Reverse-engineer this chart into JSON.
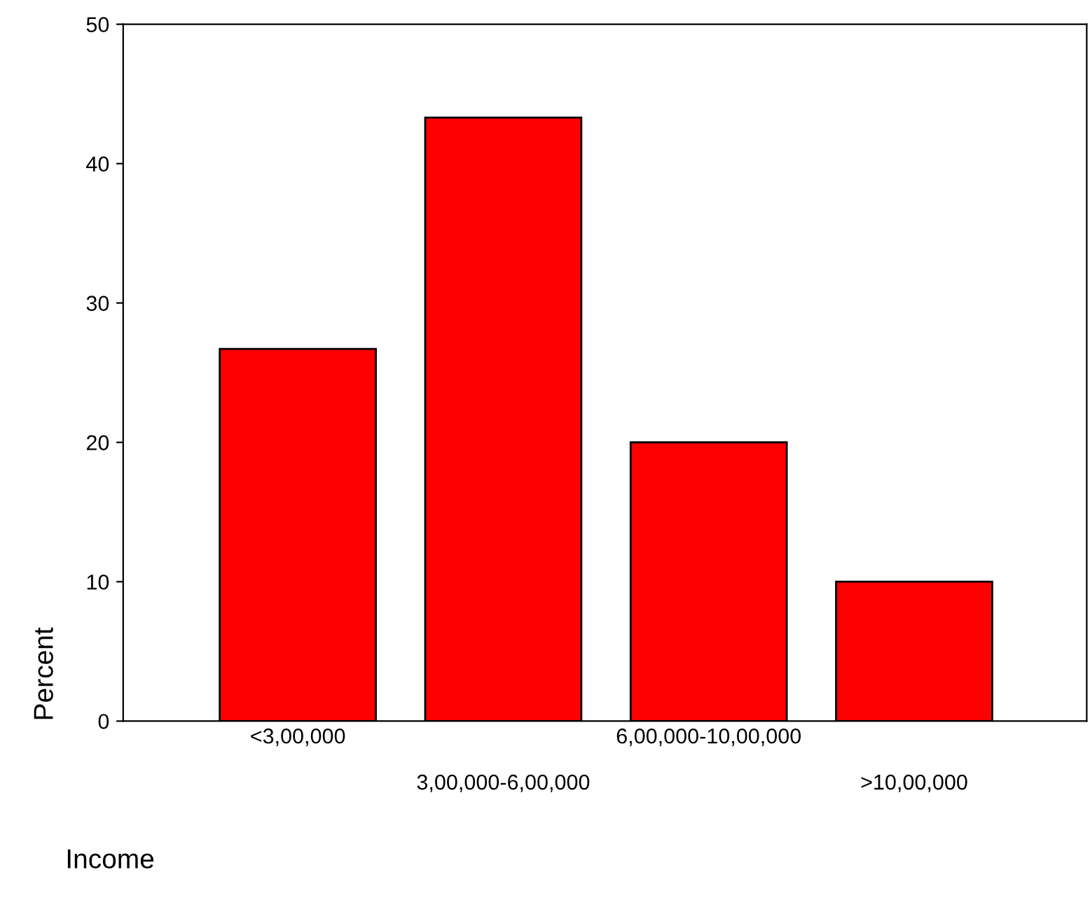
{
  "chart_data": {
    "type": "bar",
    "xlabel": "Income",
    "ylabel": "Percent",
    "categories": [
      "<3,00,000",
      "3,00,000-6,00,000",
      "6,00,000-10,00,000",
      ">10,00,000"
    ],
    "values": [
      26.7,
      43.3,
      20.0,
      10.0
    ],
    "color": "#ff0000",
    "ylim": [
      0,
      50
    ],
    "yticks": [
      0,
      10,
      20,
      30,
      40,
      50
    ],
    "grid": false,
    "legend": false
  }
}
